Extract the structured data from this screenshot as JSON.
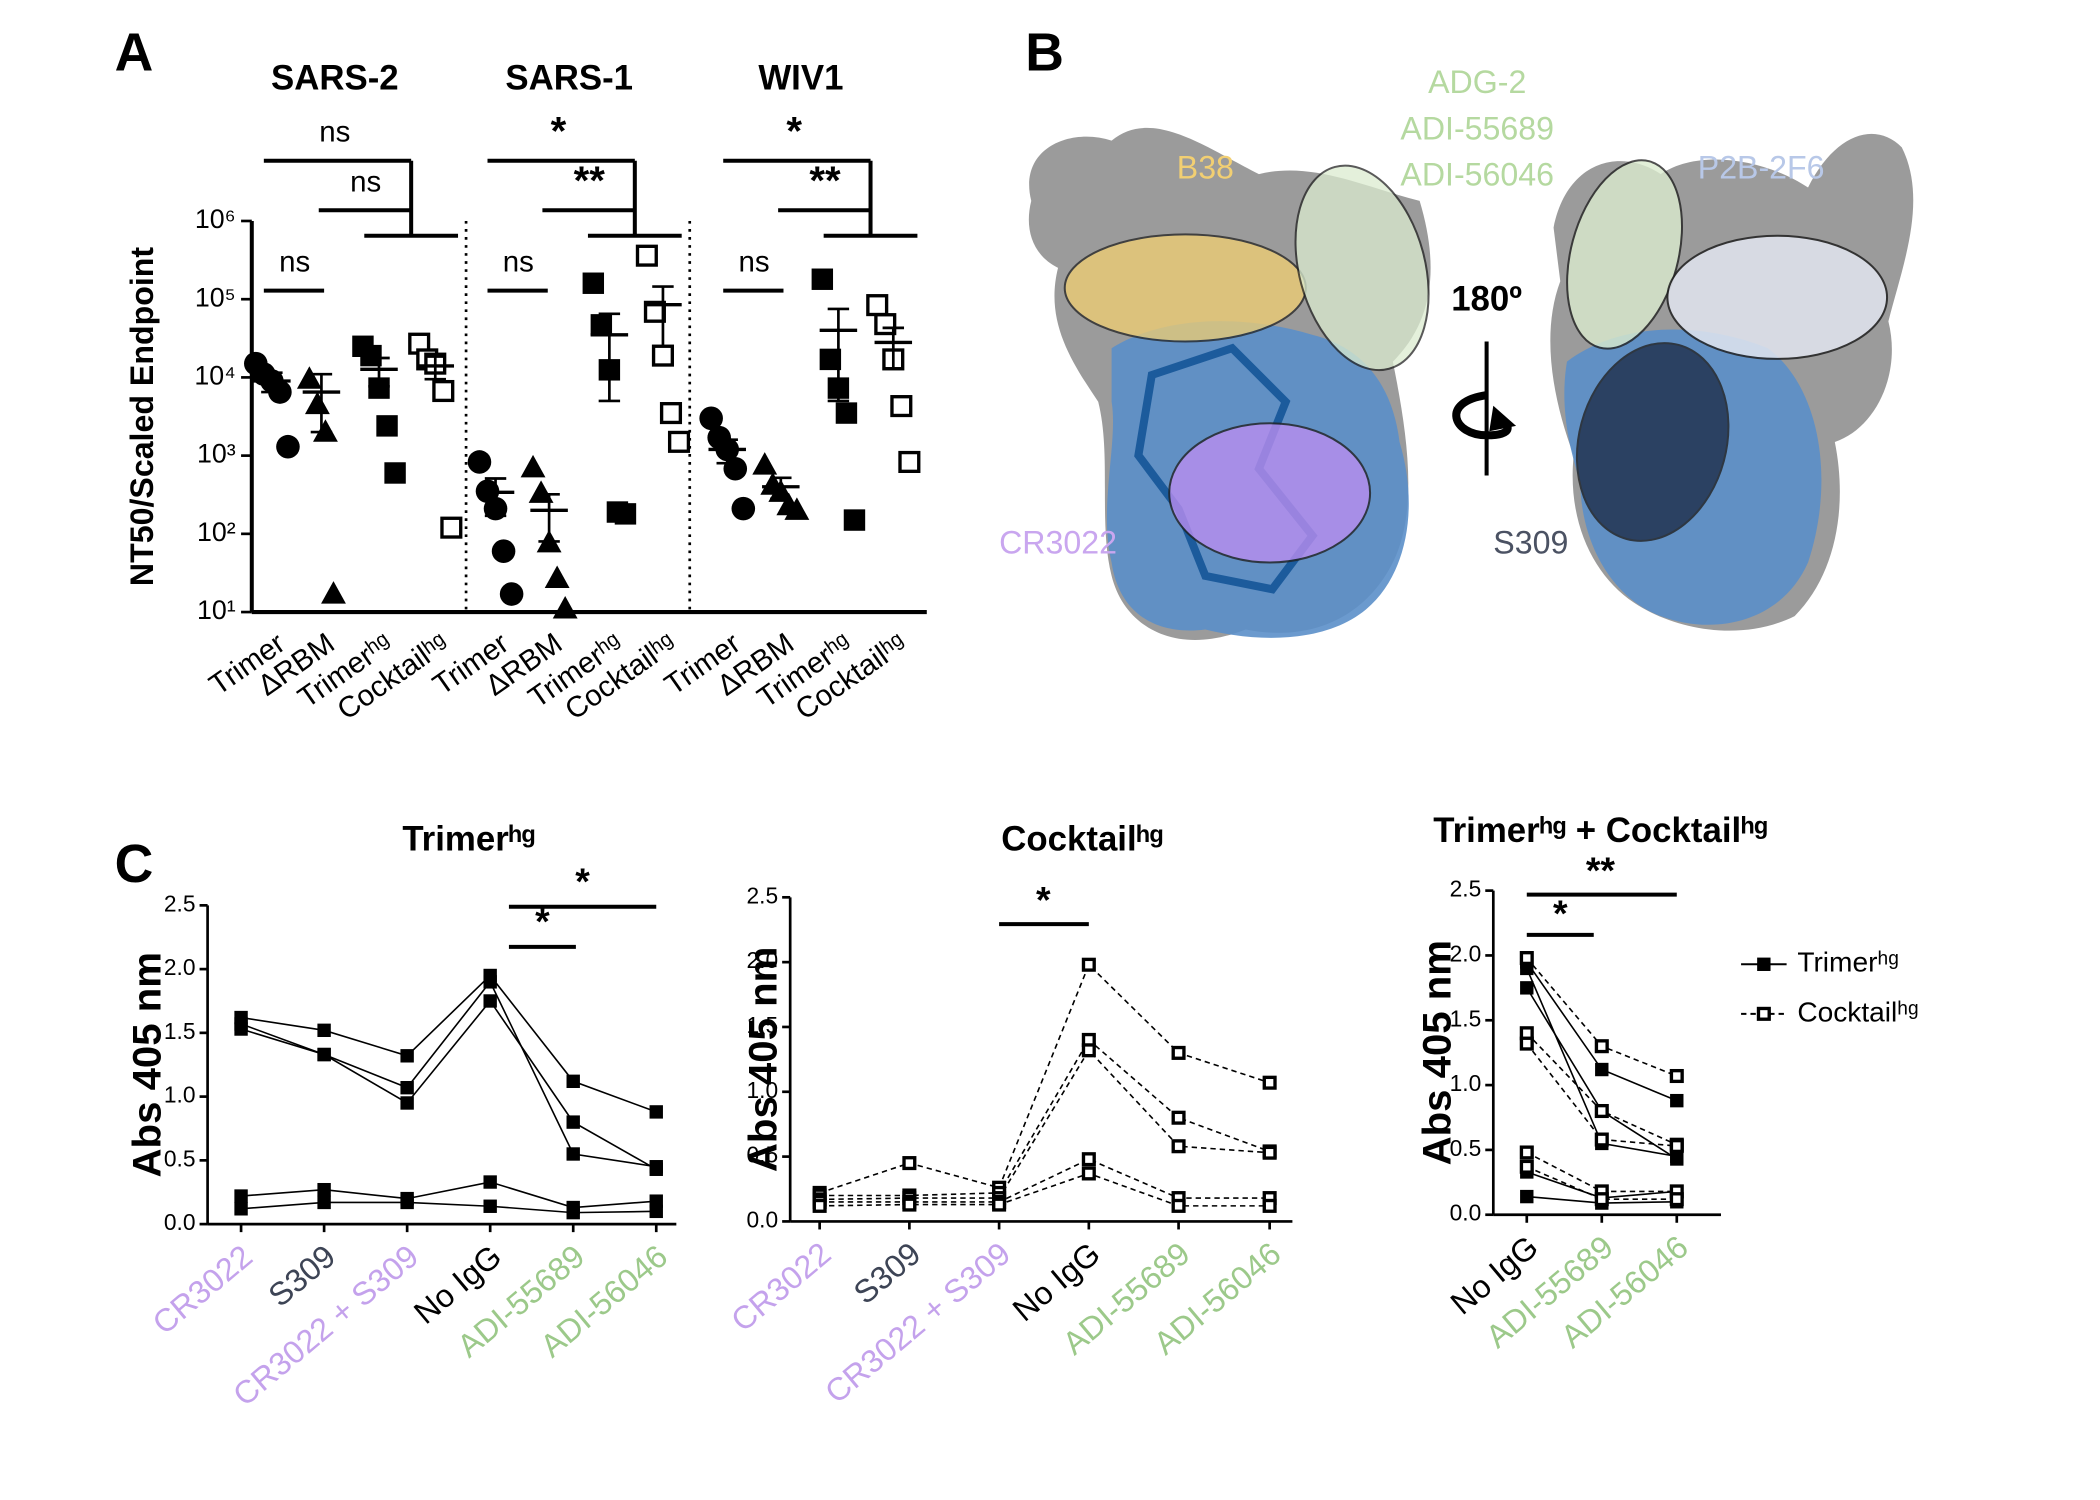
{
  "panels": [
    "A",
    "B",
    "C"
  ],
  "chart_data": [
    {
      "type": "scatter",
      "y_label": "NT50/Scaled Endpoint",
      "log_y": true,
      "ylim": [
        10,
        1000000
      ],
      "yticks": [
        {
          "value": 10,
          "label": "10¹"
        },
        {
          "value": 100,
          "label": "10²"
        },
        {
          "value": 1000,
          "label": "10³"
        },
        {
          "value": 10000,
          "label": "10⁴"
        },
        {
          "value": 100000,
          "label": "10⁵"
        },
        {
          "value": 1000000,
          "label": "10⁶"
        }
      ],
      "categories": [
        "Trimer",
        "ΔRBM",
        "Trimerʰᵍ",
        "Cocktailʰᵍ"
      ],
      "markers": [
        "circle",
        "triangle",
        "square",
        "open-square"
      ],
      "color": "#000000",
      "groups": [
        {
          "name": "SARS-2",
          "values": [
            [
              15000,
              11000,
              9000,
              6500,
              1300
            ],
            [
              9500,
              4500,
              2000,
              17
            ],
            [
              25000,
              19000,
              7300,
              2400,
              600
            ],
            [
              27000,
              17000,
              15000,
              6700,
              120
            ]
          ],
          "means": [
            9000,
            6500,
            12700,
            14000
          ],
          "errors": [
            2500,
            4500,
            5000,
            4500
          ],
          "annotations": [
            "ns",
            "ns",
            "ns"
          ]
        },
        {
          "name": "SARS-1",
          "values": [
            [
              830,
              350,
              210,
              60,
              17
            ],
            [
              700,
              330,
              77,
              27,
              11
            ],
            [
              160000,
              47000,
              12500,
              190,
              180
            ],
            [
              360000,
              69000,
              19000,
              3500,
              1500
            ]
          ],
          "means": [
            340,
            200,
            35000,
            85000
          ],
          "errors": [
            170,
            120,
            30000,
            60000
          ],
          "annotations": [
            "*",
            "**",
            "ns"
          ]
        },
        {
          "name": "WIV1",
          "values": [
            [
              3000,
              1700,
              1200,
              680,
              210
            ],
            [
              760,
              420,
              340,
              230,
              200
            ],
            [
              180000,
              17000,
              7300,
              3500,
              150
            ],
            [
              84000,
              48000,
              17000,
              4300,
              830
            ]
          ],
          "means": [
            1200,
            400,
            40000,
            28000
          ],
          "errors": [
            400,
            120,
            35000,
            15000
          ],
          "annotations": [
            "*",
            "**",
            "ns"
          ]
        }
      ]
    },
    {
      "type": "line",
      "title": "Trimerʰᵍ",
      "y_label": "Abs 405 nm",
      "ylim": [
        0,
        2.5
      ],
      "yticks": [
        {
          "value": 0,
          "label": "0.0"
        },
        {
          "value": 0.5,
          "label": "0.5"
        },
        {
          "value": 1,
          "label": "1.0"
        },
        {
          "value": 1.5,
          "label": "1.5"
        },
        {
          "value": 2,
          "label": "2.0"
        },
        {
          "value": 2.5,
          "label": "2.5"
        }
      ],
      "categories": [
        "CR3022",
        "S309",
        "CR3022 + S309",
        "No IgG",
        "ADI-55689",
        "ADI-56046"
      ],
      "category_colors": [
        "#c4a2ec",
        "#3d4455",
        "#c4a2ec",
        "#000000",
        "#9cc98a",
        "#9cc98a"
      ],
      "annotations": [
        "*",
        "*"
      ],
      "series": [
        {
          "marker": "square",
          "dash": false,
          "color": "#000000",
          "values": [
            [
              1.62,
              1.52,
              1.32,
              1.95,
              1.12,
              0.88
            ],
            [
              1.57,
              1.33,
              1.07,
              1.9,
              0.55,
              0.45
            ],
            [
              1.53,
              1.33,
              0.95,
              1.75,
              0.8,
              0.43
            ],
            [
              0.22,
              0.27,
              0.2,
              0.33,
              0.13,
              0.18
            ],
            [
              0.12,
              0.17,
              0.17,
              0.14,
              0.09,
              0.1
            ]
          ]
        }
      ]
    },
    {
      "type": "line",
      "title": "Cocktailʰᵍ",
      "y_label": "Abs 405 nm",
      "ylim": [
        0,
        2.5
      ],
      "yticks": [
        {
          "value": 0,
          "label": "0.0"
        },
        {
          "value": 0.5,
          "label": "0.5"
        },
        {
          "value": 1,
          "label": "1.0"
        },
        {
          "value": 1.5,
          "label": "1.5"
        },
        {
          "value": 2,
          "label": "2.0"
        },
        {
          "value": 2.5,
          "label": "2.5"
        }
      ],
      "categories": [
        "CR3022",
        "S309",
        "CR3022 + S309",
        "No IgG",
        "ADI-55689",
        "ADI-56046"
      ],
      "category_colors": [
        "#c4a2ec",
        "#3d4455",
        "#c4a2ec",
        "#000000",
        "#9cc98a",
        "#9cc98a"
      ],
      "annotations": [
        "*"
      ],
      "series": [
        {
          "marker": "open-square",
          "dash": true,
          "color": "#000000",
          "values": [
            [
              0.22,
              0.45,
              0.26,
              1.98,
              1.3,
              1.07
            ],
            [
              0.2,
              0.2,
              0.22,
              1.4,
              0.8,
              0.54
            ],
            [
              0.17,
              0.18,
              0.18,
              1.32,
              0.58,
              0.53
            ],
            [
              0.15,
              0.15,
              0.15,
              0.48,
              0.18,
              0.18
            ],
            [
              0.12,
              0.13,
              0.13,
              0.37,
              0.12,
              0.12
            ]
          ]
        }
      ]
    },
    {
      "type": "line",
      "title": "Trimerʰᵍ + Cocktailʰᵍ",
      "y_label": "Abs 405 nm",
      "ylim": [
        0,
        2.5
      ],
      "yticks": [
        {
          "value": 0,
          "label": "0.0"
        },
        {
          "value": 0.5,
          "label": "0.5"
        },
        {
          "value": 1,
          "label": "1.0"
        },
        {
          "value": 1.5,
          "label": "1.5"
        },
        {
          "value": 2,
          "label": "2.0"
        },
        {
          "value": 2.5,
          "label": "2.5"
        }
      ],
      "categories": [
        "No IgG",
        "ADI-55689",
        "ADI-56046"
      ],
      "category_colors": [
        "#000000",
        "#9cc98a",
        "#9cc98a"
      ],
      "annotations": [
        "**",
        "*"
      ],
      "legend": "right",
      "series": [
        {
          "name": "Trimerʰᵍ",
          "marker": "square",
          "dash": false,
          "color": "#000000",
          "values": [
            [
              1.95,
              1.12,
              0.88
            ],
            [
              1.9,
              0.55,
              0.45
            ],
            [
              1.75,
              0.8,
              0.43
            ],
            [
              0.33,
              0.13,
              0.18
            ],
            [
              0.14,
              0.09,
              0.1
            ]
          ]
        },
        {
          "name": "Cocktailʰᵍ",
          "marker": "open-square",
          "dash": true,
          "color": "#000000",
          "values": [
            [
              1.98,
              1.3,
              1.07
            ],
            [
              1.4,
              0.8,
              0.54
            ],
            [
              1.32,
              0.58,
              0.53
            ],
            [
              0.48,
              0.18,
              0.18
            ],
            [
              0.37,
              0.12,
              0.12
            ]
          ]
        }
      ]
    }
  ],
  "panel_b": {
    "b38": "B38",
    "adg2": "ADG-2",
    "adi55689": "ADI-55689",
    "adi56046": "ADI-56046",
    "p2b": "P2B-2F6",
    "cr3022": "CR3022",
    "s309": "S309",
    "rotation": "180º"
  }
}
